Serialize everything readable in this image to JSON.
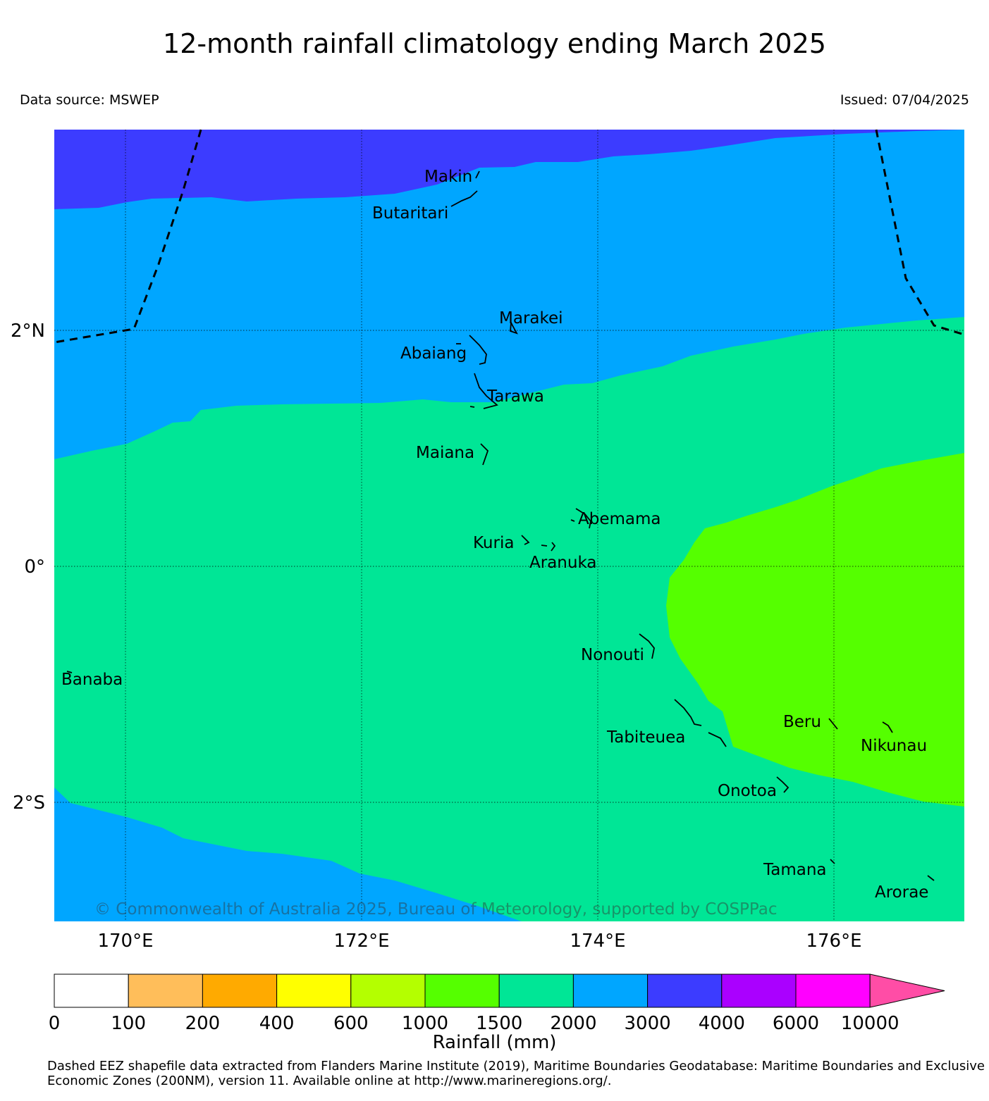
{
  "title": "12-month rainfall climatology ending March 2025",
  "data_source": "Data source: MSWEP",
  "issued": "Issued: 07/04/2025",
  "map": {
    "latitude_labels": [
      "2°N",
      "0°",
      "2°S"
    ],
    "longitude_labels": [
      "170°E",
      "172°E",
      "174°E",
      "176°E"
    ],
    "places": [
      "Makin",
      "Butaritari",
      "Marakei",
      "Abaiang",
      "Tarawa",
      "Maiana",
      "Abemama",
      "Kuria",
      "Aranuka",
      "Nonouti",
      "Banaba",
      "Tabiteuea",
      "Beru",
      "Nikunau",
      "Onotoa",
      "Tamana",
      "Arorae"
    ],
    "copyright": "© Commonwealth of Australia 2025, Bureau of Meteorology, supported by COSPPac",
    "zone_colors": {
      "1500-2000": "#00e696",
      "1000-1500": "#55ff00",
      "2000-3000": "#00a6ff",
      "3000-4000": "#3c3cff"
    }
  },
  "legend": {
    "title": "Rainfall (mm)",
    "ticks": [
      "0",
      "100",
      "200",
      "400",
      "600",
      "1000",
      "1500",
      "2000",
      "3000",
      "4000",
      "6000",
      "10000"
    ],
    "colors": [
      "#ffffff",
      "#ffbe5a",
      "#ffaa00",
      "#ffff00",
      "#b4ff00",
      "#55ff00",
      "#00e696",
      "#00a6ff",
      "#3c3cff",
      "#aa00ff",
      "#ff00ff"
    ],
    "extend_color": "#ff4da6"
  },
  "footnote": "Dashed EEZ shapefile data extracted from Flanders Marine Institute (2019), Maritime Boundaries Geodatabase: Maritime Boundaries and Exclusive Economic Zones (200NM), version 11. Available online at http://www.marineregions.org/."
}
